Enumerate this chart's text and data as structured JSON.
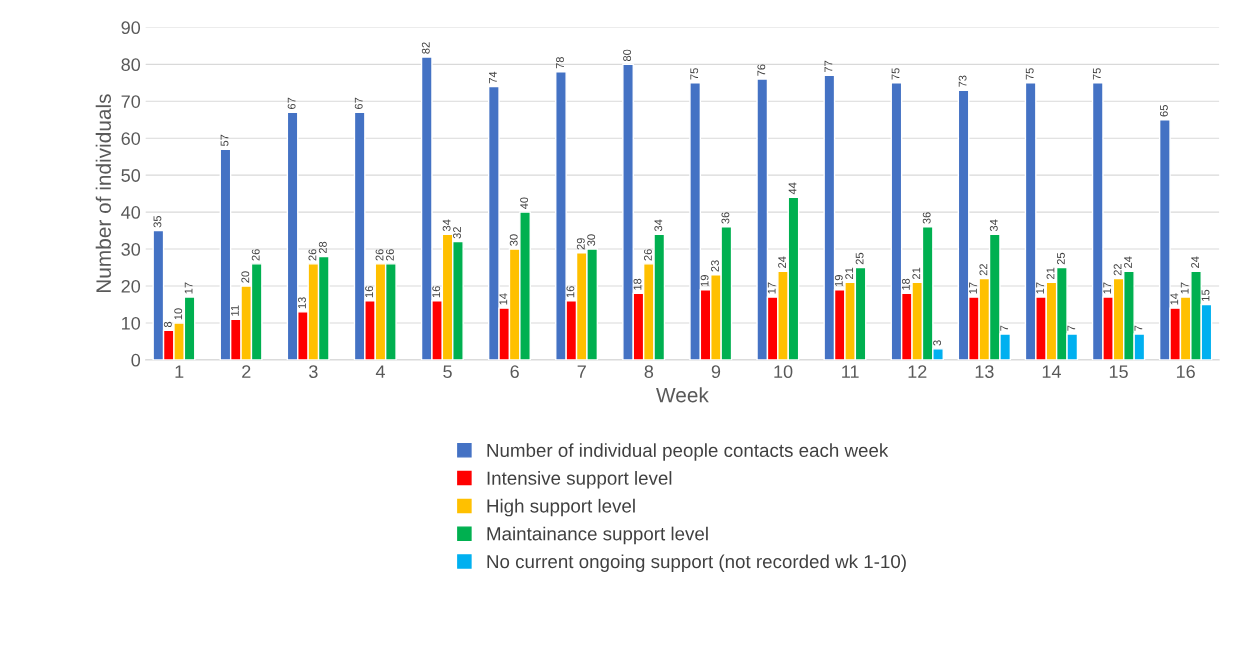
{
  "chart_data": {
    "type": "bar",
    "xlabel": "Week",
    "ylabel": "Number of individuals",
    "categories": [
      "1",
      "2",
      "3",
      "4",
      "5",
      "6",
      "7",
      "8",
      "9",
      "10",
      "11",
      "12",
      "13",
      "14",
      "15",
      "16"
    ],
    "series": [
      {
        "name": "Number of individual people contacts each week",
        "color": "#4472c4",
        "values": [
          35,
          57,
          67,
          67,
          82,
          74,
          78,
          80,
          75,
          76,
          77,
          75,
          73,
          75,
          75,
          65
        ]
      },
      {
        "name": "Intensive support level",
        "color": "#ff0000",
        "values": [
          8,
          11,
          13,
          16,
          16,
          14,
          16,
          18,
          19,
          17,
          19,
          18,
          17,
          17,
          17,
          14
        ]
      },
      {
        "name": "High support level",
        "color": "#ffc000",
        "values": [
          10,
          20,
          26,
          26,
          34,
          30,
          29,
          26,
          23,
          24,
          21,
          21,
          22,
          21,
          22,
          17
        ]
      },
      {
        "name": "Maintainance support level",
        "color": "#00b050",
        "values": [
          17,
          26,
          28,
          26,
          32,
          40,
          30,
          34,
          36,
          44,
          25,
          36,
          34,
          25,
          24,
          24
        ]
      },
      {
        "name": "No current ongoing support (not recorded wk 1-10)",
        "color": "#00b0f0",
        "values": [
          null,
          null,
          null,
          null,
          null,
          null,
          null,
          null,
          null,
          null,
          null,
          3,
          7,
          7,
          7,
          15
        ]
      }
    ],
    "ylim": [
      0,
      90
    ],
    "yticks": [
      0,
      10,
      20,
      30,
      40,
      50,
      60,
      70,
      80,
      90
    ],
    "grid": "y",
    "legend": "bottom",
    "data_labels": true
  }
}
